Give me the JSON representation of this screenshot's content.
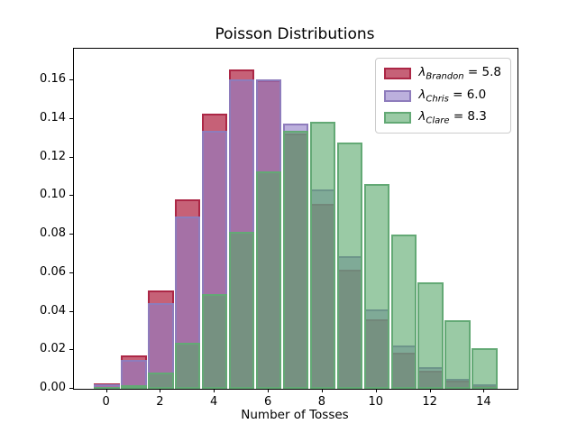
{
  "title": "Poisson Distributions",
  "x_axis": {
    "label": "Number of Tosses",
    "tick_labels": [
      "0",
      "2",
      "4",
      "6",
      "8",
      "10",
      "12",
      "14"
    ]
  },
  "y_axis": {
    "tick_labels": [
      "0.00",
      "0.02",
      "0.04",
      "0.06",
      "0.08",
      "0.10",
      "0.12",
      "0.14",
      "0.16"
    ]
  },
  "chart_data": {
    "type": "bar",
    "style": "overlaid-translucent",
    "title": "Poisson Distributions",
    "xlabel": "Number of Tosses",
    "ylabel": "",
    "x": [
      0,
      1,
      2,
      3,
      4,
      5,
      6,
      7,
      8,
      9,
      10,
      11,
      12,
      13,
      14
    ],
    "bar_width": 0.95,
    "xlim": [
      -1.2225,
      15.2225
    ],
    "ylim": [
      0,
      0.1765
    ],
    "xticks": [
      0,
      2,
      4,
      6,
      8,
      10,
      12,
      14
    ],
    "yticks": [
      0.0,
      0.02,
      0.04,
      0.06,
      0.08,
      0.1,
      0.12,
      0.14,
      0.16
    ],
    "grid": false,
    "legend_position": "upper right",
    "series": [
      {
        "name": "Brandon",
        "lambda": "5.8",
        "legend": {
          "symbol": "λ",
          "subscript": "Brandon",
          "rest": " = 5.8"
        },
        "fill": "rgba(176,36,67,0.72)",
        "edge": "#ac2746",
        "values": [
          0.00303,
          0.01756,
          0.05092,
          0.09845,
          0.14276,
          0.1656,
          0.16008,
          0.13264,
          0.09616,
          0.06197,
          0.03594,
          0.01895,
          0.00916,
          0.00409,
          0.00169
        ]
      },
      {
        "name": "Chris",
        "lambda": "6.0",
        "legend": {
          "symbol": "λ",
          "subscript": "Chris",
          "rest": " = 6.0"
        },
        "fill": "rgba(144,124,198,0.6)",
        "edge": "#8e7cbc",
        "values": [
          0.00248,
          0.01487,
          0.04462,
          0.08924,
          0.13385,
          0.16062,
          0.16062,
          0.13768,
          0.10326,
          0.06884,
          0.0413,
          0.02253,
          0.01126,
          0.0052,
          0.00223
        ]
      },
      {
        "name": "Clare",
        "lambda": "8.3",
        "legend": {
          "symbol": "λ",
          "subscript": "Clare",
          "rest": " = 8.3"
        },
        "fill": "rgba(86,166,105,0.6)",
        "edge": "#63a975",
        "values": [
          0.00025,
          0.00206,
          0.00856,
          0.02368,
          0.04914,
          0.08158,
          0.11285,
          0.13381,
          0.13882,
          0.12803,
          0.10626,
          0.08018,
          0.05546,
          0.03541,
          0.02099
        ]
      }
    ]
  }
}
